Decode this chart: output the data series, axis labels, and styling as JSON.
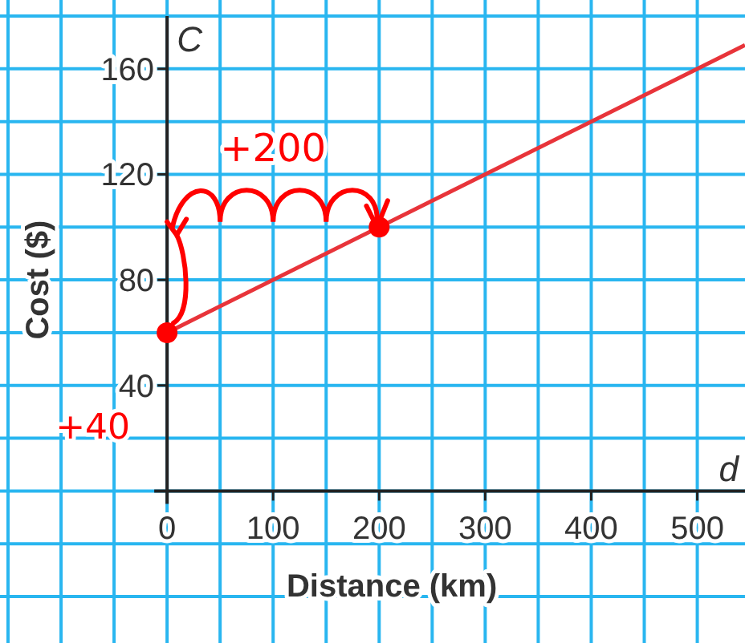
{
  "chart_data": {
    "type": "line",
    "xlabel": "Distance (km)",
    "ylabel": "Cost ($)",
    "xlim": [
      -150,
      545
    ],
    "ylim": [
      -57,
      180
    ],
    "xticks": [
      {
        "value": -150,
        "label": null
      },
      {
        "value": -100,
        "label": null
      },
      {
        "value": -50,
        "label": null
      },
      0,
      {
        "value": 50,
        "label": null
      },
      100,
      {
        "value": 150,
        "label": null
      },
      200,
      {
        "value": 250,
        "label": null
      },
      300,
      {
        "value": 350,
        "label": null
      },
      400,
      {
        "value": 450,
        "label": null
      },
      500
    ],
    "yticks": [
      {
        "value": -40,
        "label": null
      },
      {
        "value": -20,
        "label": null
      },
      {
        "value": 0,
        "label": null
      },
      {
        "value": 20,
        "label": null
      },
      40,
      {
        "value": 60,
        "label": null
      },
      80,
      {
        "value": 100,
        "label": null
      },
      120,
      {
        "value": 140,
        "label": null
      },
      160,
      {
        "value": 180,
        "label": null
      }
    ],
    "grid": true,
    "series": [
      {
        "color": "#e8343a",
        "x": [
          0,
          545
        ],
        "values": [
          60,
          169
        ]
      },
      {
        "type": "scatter",
        "color": "#ff0000",
        "x": [
          0,
          200
        ],
        "values": [
          60,
          100
        ],
        "marker": "circle"
      }
    ],
    "annotations": [
      "C",
      "d",
      "+40",
      "+200"
    ]
  }
}
